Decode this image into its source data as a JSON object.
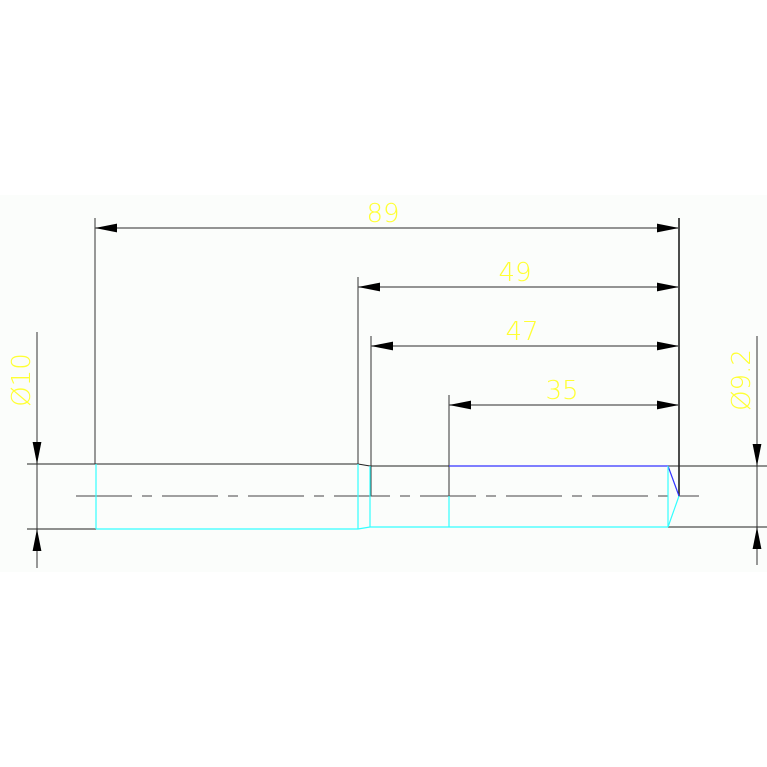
{
  "colors": {
    "background": "#fbfdfb",
    "outline": "#222222",
    "dimension_line": "#555555",
    "dimension_text": "#ffff33",
    "hidden_edge_cyan": "#33ffff",
    "thread_edge_blue": "#3333ff"
  },
  "dimensions": {
    "overall_length": "89",
    "length_49": "49",
    "length_47": "47",
    "length_35": "35",
    "diameter_left": "Ø10",
    "diameter_right": "Ø9.2"
  }
}
